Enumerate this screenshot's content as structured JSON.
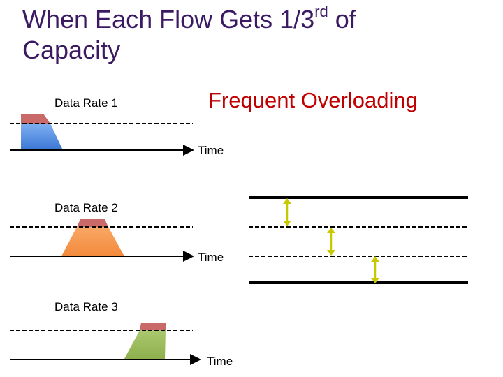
{
  "title": {
    "line1_prefix": "When Each Flow Gets 1/3",
    "line1_sup": "rd",
    "line1_suffix": " of",
    "line2": "Capacity"
  },
  "callout": "Frequent Overloading",
  "flows": [
    {
      "rate_label": "Data Rate 1",
      "time_label": "Time"
    },
    {
      "rate_label": "Data Rate 2",
      "time_label": "Time"
    },
    {
      "rate_label": "Data Rate 3",
      "time_label": "Time"
    }
  ],
  "colors": {
    "title": "#3b1a63",
    "callout": "#c00000",
    "flow1_top": "#c0504d",
    "flow1_body": "#4a86e8",
    "flow2_top": "#c0504d",
    "flow2_body": "#f79646",
    "flow3_top": "#c0504d",
    "flow3_body": "#9bbb59",
    "arrows": "#c8c800"
  }
}
